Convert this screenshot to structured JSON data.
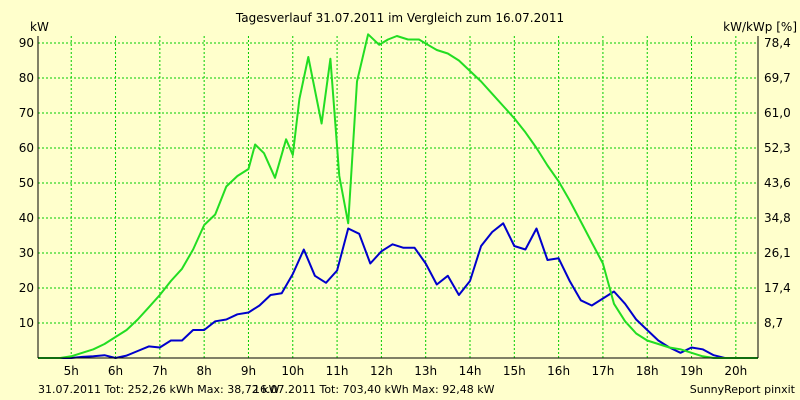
{
  "chart_data": {
    "type": "line",
    "title": "Tagesverlauf 31.07.2011 im Vergleich zum 16.07.2011",
    "ylabel_left": "kW",
    "ylabel_right": "kW/kWp [%]",
    "ylim": [
      0,
      92
    ],
    "left_ticks": [
      "10",
      "20",
      "30",
      "40",
      "50",
      "60",
      "70",
      "80",
      "90"
    ],
    "right_ticks": [
      "8,7",
      "17,4",
      "26,1",
      "34,8",
      "43,6",
      "52,3",
      "61,0",
      "69,7",
      "78,4"
    ],
    "x_ticks": [
      "5h",
      "6h",
      "7h",
      "8h",
      "9h",
      "10h",
      "11h",
      "12h",
      "13h",
      "14h",
      "15h",
      "16h",
      "17h",
      "18h",
      "19h",
      "20h"
    ],
    "xlim": [
      4.25,
      20.5
    ],
    "grid": true,
    "series": [
      {
        "color": "#0000cc",
        "x": [
          4.25,
          5.0,
          5.25,
          5.5,
          5.75,
          6.0,
          6.25,
          6.5,
          6.75,
          7.0,
          7.25,
          7.5,
          7.75,
          8.0,
          8.25,
          8.5,
          8.75,
          9.0,
          9.25,
          9.5,
          9.75,
          10.0,
          10.25,
          10.5,
          10.75,
          11.0,
          11.25,
          11.5,
          11.75,
          12.0,
          12.25,
          12.5,
          12.75,
          13.0,
          13.25,
          13.5,
          13.75,
          14.0,
          14.25,
          14.5,
          14.75,
          15.0,
          15.25,
          15.5,
          15.75,
          16.0,
          16.25,
          16.5,
          16.75,
          17.0,
          17.25,
          17.5,
          17.75,
          18.0,
          18.25,
          18.5,
          18.75,
          19.0,
          19.25,
          19.5,
          19.75,
          20.0,
          20.5
        ],
        "values": [
          0,
          0,
          0.3,
          0.5,
          0.8,
          0,
          0.7,
          2,
          3.3,
          3,
          5,
          5,
          8,
          8,
          10.5,
          11,
          12.5,
          13,
          15,
          18,
          18.5,
          24,
          31,
          23.5,
          21.5,
          25,
          37,
          35.5,
          27,
          30.5,
          32.5,
          31.5,
          31.5,
          27,
          21,
          23.5,
          18,
          22,
          32,
          36,
          38.5,
          32,
          31,
          37,
          28,
          28.5,
          22,
          16.5,
          15,
          17,
          19,
          15.5,
          11,
          8,
          5,
          3,
          1.5,
          3,
          2.5,
          0.8,
          0,
          0,
          0
        ]
      },
      {
        "color": "#22dd22",
        "x": [
          4.25,
          4.75,
          5.0,
          5.25,
          5.5,
          5.75,
          6.0,
          6.25,
          6.5,
          6.75,
          7.0,
          7.25,
          7.5,
          7.75,
          8.0,
          8.25,
          8.5,
          8.75,
          9.0,
          9.15,
          9.35,
          9.6,
          9.85,
          10.0,
          10.15,
          10.35,
          10.65,
          10.85,
          11.05,
          11.25,
          11.45,
          11.7,
          11.95,
          12.15,
          12.35,
          12.6,
          12.85,
          13.05,
          13.25,
          13.5,
          13.75,
          14.0,
          14.25,
          14.5,
          14.75,
          15.0,
          15.25,
          15.5,
          15.75,
          16.0,
          16.25,
          16.5,
          16.75,
          17.0,
          17.25,
          17.5,
          17.75,
          18.0,
          18.25,
          18.5,
          18.75,
          19.0,
          19.25,
          19.5,
          19.75,
          20.0,
          20.5
        ],
        "values": [
          0,
          0,
          0.5,
          1.5,
          2.5,
          4,
          6,
          8,
          11,
          14.5,
          18,
          22,
          25.5,
          31,
          38,
          41,
          49,
          52,
          54,
          61,
          58.5,
          51.5,
          62.5,
          58,
          74,
          86,
          67,
          85.5,
          52,
          38.5,
          79,
          92.5,
          89.5,
          91,
          92,
          91,
          91,
          89.5,
          88,
          87,
          85,
          82,
          79,
          75.5,
          72,
          68.5,
          64.5,
          60,
          55,
          50.5,
          45,
          39,
          33,
          27,
          15.5,
          10.5,
          7,
          5,
          4,
          3,
          2.5,
          1.5,
          0.5,
          0,
          0,
          0,
          0
        ]
      }
    ]
  },
  "footer": {
    "blue_text": "31.07.2011 Tot: 252,26 kWh Max: 38,72 kW",
    "green_text": "16.07.2011 Tot: 703,40 kWh Max: 92,48 kW",
    "credit": "SunnyReport pinxit"
  },
  "colors": {
    "background": "#ffffcc",
    "grid": "#00cc00",
    "axis": "#000000"
  }
}
